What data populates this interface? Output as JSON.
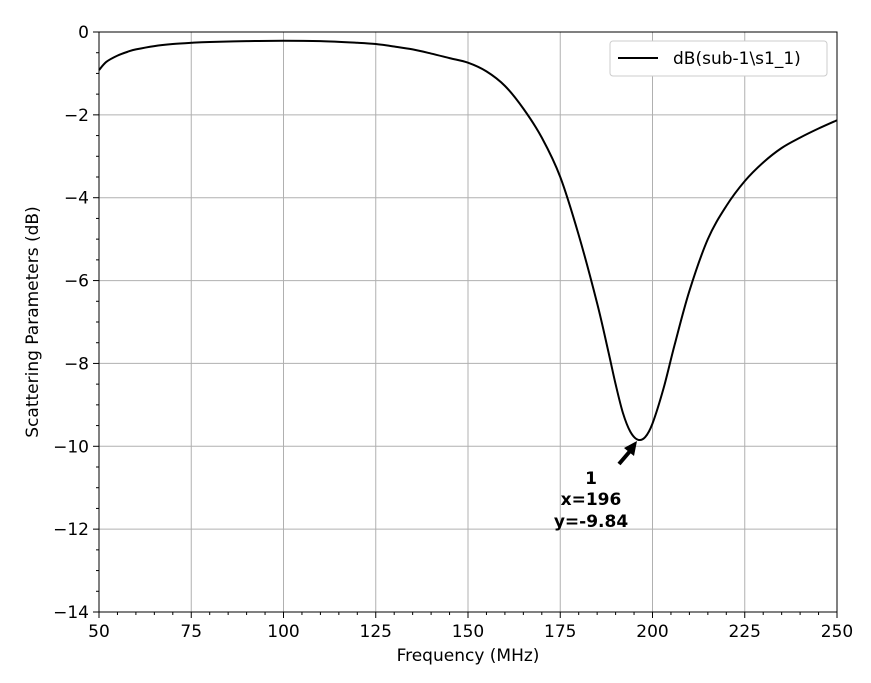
{
  "chart_data": {
    "type": "line",
    "title": "",
    "xlabel": "Frequency (MHz)",
    "ylabel": "Scattering Parameters (dB)",
    "xlim": [
      50,
      250
    ],
    "ylim": [
      -14,
      0
    ],
    "x_ticks": [
      50,
      75,
      100,
      125,
      150,
      175,
      200,
      225,
      250
    ],
    "y_ticks": [
      0,
      -2,
      -4,
      -6,
      -8,
      -10,
      -12,
      -14
    ],
    "x_tick_labels": [
      "50",
      "75",
      "100",
      "125",
      "150",
      "175",
      "200",
      "225",
      "250"
    ],
    "y_tick_labels": [
      "0",
      "−2",
      "−4",
      "−6",
      "−8",
      "−10",
      "−12",
      "−14"
    ],
    "grid": true,
    "legend_position": "top-right",
    "series": [
      {
        "name": "dB(sub-1\\s1_1)",
        "color": "#000000",
        "x": [
          50,
          52,
          55,
          58,
          60,
          65,
          70,
          75,
          80,
          90,
          100,
          110,
          120,
          125,
          130,
          135,
          140,
          145,
          150,
          155,
          160,
          165,
          170,
          175,
          180,
          185,
          188,
          190,
          192,
          194,
          196,
          198,
          200,
          203,
          206,
          210,
          215,
          220,
          225,
          230,
          235,
          240,
          245,
          250
        ],
        "y": [
          -0.92,
          -0.72,
          -0.57,
          -0.47,
          -0.42,
          -0.34,
          -0.29,
          -0.26,
          -0.24,
          -0.22,
          -0.21,
          -0.22,
          -0.26,
          -0.29,
          -0.35,
          -0.42,
          -0.52,
          -0.63,
          -0.74,
          -0.95,
          -1.3,
          -1.85,
          -2.55,
          -3.5,
          -4.9,
          -6.55,
          -7.7,
          -8.5,
          -9.2,
          -9.65,
          -9.84,
          -9.78,
          -9.45,
          -8.6,
          -7.55,
          -6.25,
          -5.0,
          -4.2,
          -3.6,
          -3.15,
          -2.8,
          -2.55,
          -2.33,
          -2.13
        ]
      }
    ],
    "annotations": [
      {
        "marker_label": "1",
        "x_text": "x=196",
        "y_text": "y=-9.84",
        "x": 196,
        "y": -9.84
      }
    ]
  }
}
